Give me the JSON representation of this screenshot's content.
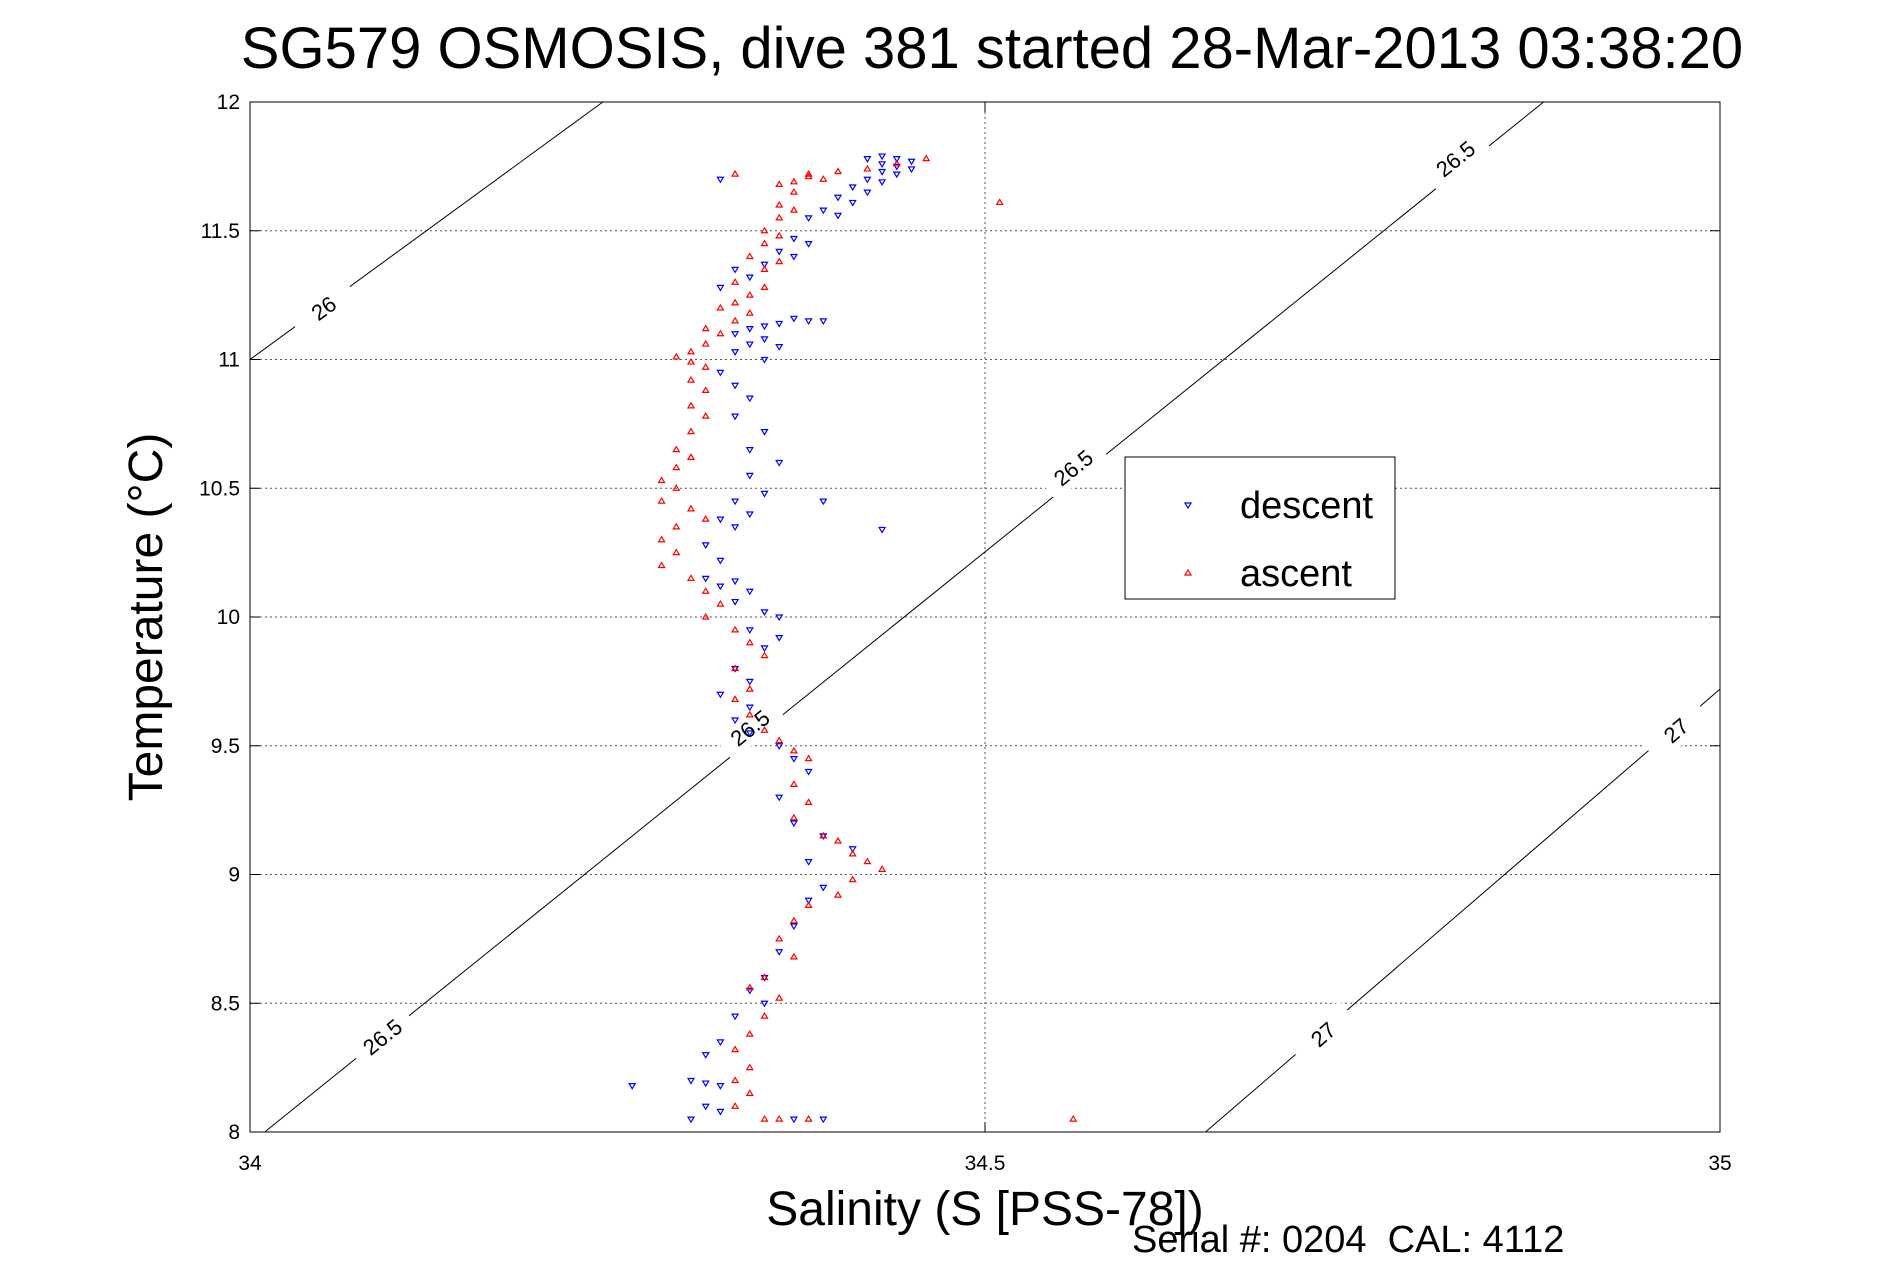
{
  "chart_data": {
    "type": "scatter",
    "title": "SG579 OSMOSIS, dive 381 started 28-Mar-2013 03:38:20",
    "xlabel": "Salinity (S [PSS-78])",
    "ylabel": "Temperature (°C)",
    "footer": "Serial #: 0204  CAL: 4112",
    "xlim": [
      34,
      35
    ],
    "ylim": [
      8,
      12
    ],
    "xticks": [
      "34",
      "34.5",
      "35"
    ],
    "yticks": [
      "8",
      "8.5",
      "9",
      "9.5",
      "10",
      "10.5",
      "11",
      "11.5",
      "12"
    ],
    "grid": true,
    "legend_position": "upper-right",
    "contours": [
      {
        "label": "26",
        "points": [
          [
            34.0,
            11.0
          ],
          [
            34.24,
            12.0
          ]
        ],
        "label_at": [
          [
            34.05,
            11.2
          ]
        ]
      },
      {
        "label": "26.5",
        "points": [
          [
            34.01,
            8.0
          ],
          [
            34.88,
            12.0
          ]
        ],
        "label_at": [
          [
            34.34,
            9.57
          ],
          [
            34.56,
            10.58
          ],
          [
            34.82,
            11.78
          ],
          [
            34.09,
            8.37
          ]
        ]
      },
      {
        "label": "27",
        "points": [
          [
            34.65,
            8.0
          ],
          [
            35.0,
            9.72
          ]
        ],
        "label_at": [
          [
            34.73,
            8.38
          ],
          [
            34.97,
            9.56
          ]
        ]
      }
    ],
    "series": [
      {
        "name": "descent",
        "color": "#0000ff",
        "marker": "triangle-down",
        "points": [
          [
            34.43,
            11.79
          ],
          [
            34.44,
            11.78
          ],
          [
            34.42,
            11.78
          ],
          [
            34.45,
            11.77
          ],
          [
            34.43,
            11.76
          ],
          [
            34.44,
            11.75
          ],
          [
            34.45,
            11.74
          ],
          [
            34.43,
            11.73
          ],
          [
            34.44,
            11.72
          ],
          [
            34.42,
            11.7
          ],
          [
            34.43,
            11.69
          ],
          [
            34.41,
            11.67
          ],
          [
            34.42,
            11.65
          ],
          [
            34.4,
            11.63
          ],
          [
            34.41,
            11.61
          ],
          [
            34.39,
            11.58
          ],
          [
            34.4,
            11.56
          ],
          [
            34.38,
            11.55
          ],
          [
            34.37,
            11.47
          ],
          [
            34.38,
            11.45
          ],
          [
            34.36,
            11.42
          ],
          [
            34.37,
            11.4
          ],
          [
            34.35,
            11.37
          ],
          [
            34.33,
            11.35
          ],
          [
            34.34,
            11.32
          ],
          [
            34.32,
            11.28
          ],
          [
            34.37,
            11.16
          ],
          [
            34.38,
            11.15
          ],
          [
            34.39,
            11.15
          ],
          [
            34.36,
            11.14
          ],
          [
            34.35,
            11.13
          ],
          [
            34.34,
            11.12
          ],
          [
            34.33,
            11.1
          ],
          [
            34.35,
            11.08
          ],
          [
            34.34,
            11.06
          ],
          [
            34.36,
            11.05
          ],
          [
            34.33,
            11.03
          ],
          [
            34.35,
            11.0
          ],
          [
            34.32,
            10.95
          ],
          [
            34.33,
            10.9
          ],
          [
            34.34,
            10.85
          ],
          [
            34.33,
            10.78
          ],
          [
            34.35,
            10.72
          ],
          [
            34.34,
            10.65
          ],
          [
            34.36,
            10.6
          ],
          [
            34.34,
            10.55
          ],
          [
            34.35,
            10.48
          ],
          [
            34.33,
            10.45
          ],
          [
            34.34,
            10.4
          ],
          [
            34.32,
            10.38
          ],
          [
            34.33,
            10.35
          ],
          [
            34.31,
            10.28
          ],
          [
            34.32,
            10.22
          ],
          [
            34.31,
            10.15
          ],
          [
            34.33,
            10.14
          ],
          [
            34.32,
            10.12
          ],
          [
            34.34,
            10.1
          ],
          [
            34.33,
            10.06
          ],
          [
            34.35,
            10.02
          ],
          [
            34.36,
            10.0
          ],
          [
            34.34,
            9.95
          ],
          [
            34.36,
            9.92
          ],
          [
            34.35,
            9.88
          ],
          [
            34.33,
            9.8
          ],
          [
            34.34,
            9.75
          ],
          [
            34.32,
            9.7
          ],
          [
            34.34,
            9.65
          ],
          [
            34.33,
            9.6
          ],
          [
            34.34,
            9.55
          ],
          [
            34.36,
            9.5
          ],
          [
            34.37,
            9.45
          ],
          [
            34.38,
            9.4
          ],
          [
            34.36,
            9.3
          ],
          [
            34.37,
            9.2
          ],
          [
            34.39,
            9.15
          ],
          [
            34.41,
            9.1
          ],
          [
            34.38,
            9.05
          ],
          [
            34.39,
            8.95
          ],
          [
            34.38,
            8.9
          ],
          [
            34.37,
            8.8
          ],
          [
            34.36,
            8.7
          ],
          [
            34.35,
            8.6
          ],
          [
            34.34,
            8.55
          ],
          [
            34.35,
            8.5
          ],
          [
            34.33,
            8.45
          ],
          [
            34.32,
            8.35
          ],
          [
            34.31,
            8.3
          ],
          [
            34.3,
            8.2
          ],
          [
            34.31,
            8.19
          ],
          [
            34.32,
            8.18
          ],
          [
            34.31,
            8.1
          ],
          [
            34.32,
            8.08
          ],
          [
            34.3,
            8.05
          ],
          [
            34.37,
            8.05
          ],
          [
            34.39,
            8.05
          ],
          [
            34.26,
            8.18
          ],
          [
            34.32,
            11.7
          ],
          [
            34.43,
            10.34
          ],
          [
            34.39,
            10.45
          ]
        ]
      },
      {
        "name": "ascent",
        "color": "#ff0000",
        "marker": "triangle-up",
        "points": [
          [
            34.46,
            11.78
          ],
          [
            34.44,
            11.76
          ],
          [
            34.42,
            11.74
          ],
          [
            34.4,
            11.73
          ],
          [
            34.38,
            11.72
          ],
          [
            34.39,
            11.7
          ],
          [
            34.37,
            11.69
          ],
          [
            34.36,
            11.68
          ],
          [
            34.38,
            11.71
          ],
          [
            34.37,
            11.65
          ],
          [
            34.36,
            11.6
          ],
          [
            34.37,
            11.58
          ],
          [
            34.36,
            11.55
          ],
          [
            34.35,
            11.5
          ],
          [
            34.36,
            11.48
          ],
          [
            34.35,
            11.45
          ],
          [
            34.34,
            11.4
          ],
          [
            34.36,
            11.38
          ],
          [
            34.35,
            11.35
          ],
          [
            34.33,
            11.3
          ],
          [
            34.35,
            11.28
          ],
          [
            34.34,
            11.25
          ],
          [
            34.33,
            11.22
          ],
          [
            34.32,
            11.2
          ],
          [
            34.34,
            11.18
          ],
          [
            34.33,
            11.15
          ],
          [
            34.31,
            11.12
          ],
          [
            34.32,
            11.1
          ],
          [
            34.31,
            11.06
          ],
          [
            34.3,
            11.03
          ],
          [
            34.29,
            11.01
          ],
          [
            34.3,
            10.99
          ],
          [
            34.31,
            10.97
          ],
          [
            34.3,
            10.92
          ],
          [
            34.31,
            10.88
          ],
          [
            34.3,
            10.82
          ],
          [
            34.31,
            10.78
          ],
          [
            34.3,
            10.72
          ],
          [
            34.29,
            10.65
          ],
          [
            34.3,
            10.62
          ],
          [
            34.29,
            10.58
          ],
          [
            34.28,
            10.53
          ],
          [
            34.29,
            10.5
          ],
          [
            34.28,
            10.45
          ],
          [
            34.3,
            10.42
          ],
          [
            34.31,
            10.38
          ],
          [
            34.29,
            10.35
          ],
          [
            34.28,
            10.3
          ],
          [
            34.29,
            10.25
          ],
          [
            34.28,
            10.2
          ],
          [
            34.3,
            10.15
          ],
          [
            34.31,
            10.1
          ],
          [
            34.32,
            10.05
          ],
          [
            34.31,
            10.0
          ],
          [
            34.33,
            9.95
          ],
          [
            34.34,
            9.9
          ],
          [
            34.35,
            9.85
          ],
          [
            34.33,
            9.8
          ],
          [
            34.34,
            9.72
          ],
          [
            34.33,
            9.68
          ],
          [
            34.34,
            9.62
          ],
          [
            34.35,
            9.56
          ],
          [
            34.36,
            9.52
          ],
          [
            34.37,
            9.48
          ],
          [
            34.38,
            9.45
          ],
          [
            34.37,
            9.35
          ],
          [
            34.38,
            9.28
          ],
          [
            34.37,
            9.22
          ],
          [
            34.39,
            9.15
          ],
          [
            34.4,
            9.13
          ],
          [
            34.41,
            9.08
          ],
          [
            34.42,
            9.05
          ],
          [
            34.43,
            9.02
          ],
          [
            34.41,
            8.98
          ],
          [
            34.4,
            8.92
          ],
          [
            34.38,
            8.88
          ],
          [
            34.37,
            8.82
          ],
          [
            34.36,
            8.75
          ],
          [
            34.37,
            8.68
          ],
          [
            34.35,
            8.6
          ],
          [
            34.34,
            8.56
          ],
          [
            34.36,
            8.52
          ],
          [
            34.35,
            8.45
          ],
          [
            34.34,
            8.38
          ],
          [
            34.33,
            8.32
          ],
          [
            34.34,
            8.25
          ],
          [
            34.33,
            8.2
          ],
          [
            34.34,
            8.15
          ],
          [
            34.33,
            8.1
          ],
          [
            34.35,
            8.05
          ],
          [
            34.36,
            8.05
          ],
          [
            34.38,
            8.05
          ],
          [
            34.33,
            11.72
          ],
          [
            34.51,
            11.61
          ],
          [
            34.56,
            8.05
          ]
        ]
      }
    ]
  }
}
